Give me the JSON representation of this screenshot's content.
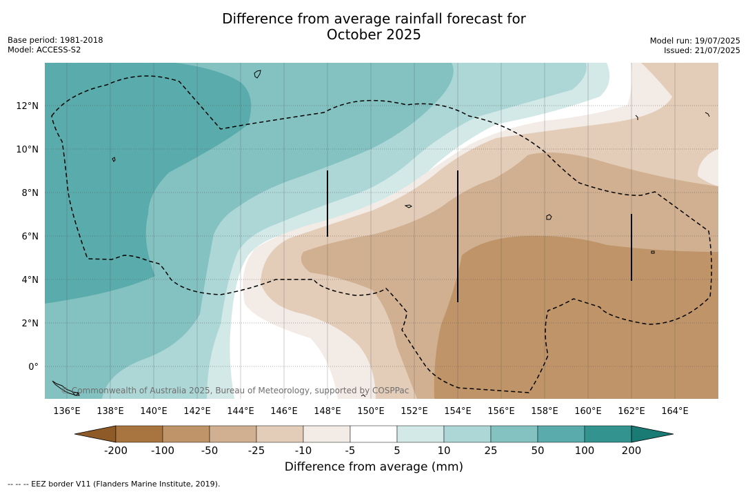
{
  "title": {
    "line1": "Difference from average rainfall forecast for",
    "line2": "October 2025"
  },
  "meta_left": {
    "base_period": "Base period: 1981-2018",
    "model": "Model: ACCESS-S2"
  },
  "meta_right": {
    "model_run": "Model run: 19/07/2025",
    "issued": "Issued: 21/07/2025"
  },
  "copyright": "© Commonwealth of Australia 2025, Bureau of Meteorology, supported by COSPPac",
  "lat_ticks": [
    "12°N",
    "10°N",
    "8°N",
    "6°N",
    "4°N",
    "2°N",
    "0°"
  ],
  "lon_ticks": [
    "136°E",
    "138°E",
    "140°E",
    "142°E",
    "144°E",
    "146°E",
    "148°E",
    "150°E",
    "152°E",
    "154°E",
    "156°E",
    "158°E",
    "160°E",
    "162°E",
    "164°E"
  ],
  "colorbar": {
    "labels": [
      "-200",
      "-100",
      "-50",
      "-25",
      "-10",
      "-5",
      "5",
      "10",
      "25",
      "50",
      "100",
      "200"
    ],
    "colors": [
      "#a8743f",
      "#be9468",
      "#d0b090",
      "#e3cdb9",
      "#f3ece6",
      "#ffffff",
      "#d3e9e7",
      "#add7d6",
      "#84c2c1",
      "#5aabab",
      "#33948f"
    ],
    "under_color": "#8e5a28",
    "over_color": "#1a7a74",
    "title": "Difference from average (mm)"
  },
  "footnote": "-- -- -- EEZ border V11 (Flanders Marine Institute, 2019)."
}
